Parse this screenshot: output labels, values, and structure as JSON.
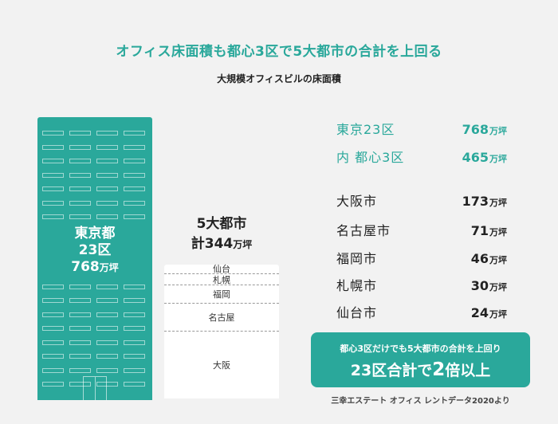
{
  "header": {
    "title": "オフィス床面積も都心3区で5大都市の合計を上回る",
    "subtitle": "大規模オフィスビルの床面積"
  },
  "chart_data": {
    "type": "bar",
    "unit": "万坪",
    "tokyo": {
      "line1": "東京都",
      "line2": "23区",
      "value": "768",
      "unit": "万坪"
    },
    "five_cities": {
      "line1": "5大都市",
      "total_prefix": "計",
      "total": "344",
      "unit": "万坪",
      "segments": [
        {
          "name": "仙台",
          "value": 24
        },
        {
          "name": "札幌",
          "value": 30
        },
        {
          "name": "福岡",
          "value": 46
        },
        {
          "name": "名古屋",
          "value": 71
        },
        {
          "name": "大阪",
          "value": 173
        }
      ]
    },
    "list": [
      {
        "name": "東京23区",
        "value": "768",
        "unit": "万坪",
        "highlight": true
      },
      {
        "name": "内 都心3区",
        "value": "465",
        "unit": "万坪",
        "highlight": true
      },
      {
        "name": "大阪市",
        "value": "173",
        "unit": "万坪",
        "highlight": false
      },
      {
        "name": "名古屋市",
        "value": "71",
        "unit": "万坪",
        "highlight": false
      },
      {
        "name": "福岡市",
        "value": "46",
        "unit": "万坪",
        "highlight": false
      },
      {
        "name": "札幌市",
        "value": "30",
        "unit": "万坪",
        "highlight": false
      },
      {
        "name": "仙台市",
        "value": "24",
        "unit": "万坪",
        "highlight": false
      }
    ]
  },
  "callout": {
    "line1": "都心3区だけでも5大都市の合計を上回り",
    "line2_a": "23区合計で",
    "line2_num": "2",
    "line2_b": "倍以上"
  },
  "source": "三幸エステート オフィス レントデータ2020より",
  "colors": {
    "accent": "#2aa89b",
    "background": "#f2f2f2",
    "stack_bg": "#ffffff"
  }
}
